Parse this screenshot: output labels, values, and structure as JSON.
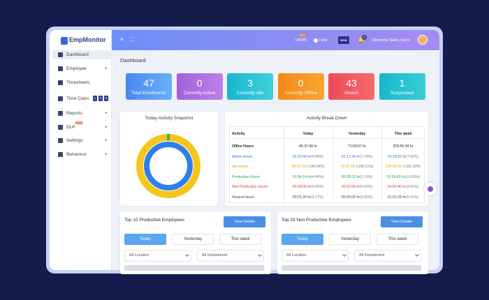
{
  "logo": "EmpMonitor",
  "sidebar": [
    {
      "label": "Dashboard"
    },
    {
      "label": "Employee"
    },
    {
      "label": "Timesheets"
    },
    {
      "label": "Time Claim",
      "badges": [
        "1",
        "2",
        "3"
      ]
    },
    {
      "label": "Reports"
    },
    {
      "label": "DLP",
      "badge": "NEW"
    },
    {
      "label": "Settings"
    },
    {
      "label": "Behaviour"
    }
  ],
  "topbar": {
    "hrms": "HRMS",
    "hrms_badge": "NEW",
    "help": "Help",
    "new_icon": "NEW",
    "notifications": "0",
    "welcome": "Welcome Sales_team"
  },
  "page_title": "Dashboard",
  "stats": [
    {
      "value": 47,
      "label": "Total Enrollments"
    },
    {
      "value": 0,
      "label": "Currently Active"
    },
    {
      "value": 3,
      "label": "Currently Idle"
    },
    {
      "value": 0,
      "label": "Currently Offline"
    },
    {
      "value": 43,
      "label": "Absent"
    },
    {
      "value": 1,
      "label": "Suspended"
    }
  ],
  "snapshot": {
    "title": "Today Activity Snapshot"
  },
  "breakdown": {
    "title": "Activity Break Down",
    "columns": [
      "Activity",
      "Today",
      "Yesterday",
      "This week"
    ],
    "rows": [
      {
        "activity": "Office Hours",
        "cells": [
          {
            "time": "45:37:40 hr"
          },
          {
            "time": "71:59:57 hr"
          },
          {
            "time": "259:55:34 hr"
          }
        ]
      },
      {
        "activity": "Active Hours",
        "cells": [
          {
            "time": "02:15:40 hr",
            "pct": "(4.96%)"
          },
          {
            "time": "01:17:26 hr",
            "pct": "(1.79%)"
          },
          {
            "time": "20:19:52 hr",
            "pct": "(7.82%)"
          }
        ]
      },
      {
        "activity": "Idle Hours",
        "cells": [
          {
            "time": "43:22:00 hr",
            "pct": "(95.04%)"
          },
          {
            "time": "70:42:29 hr",
            "pct": "(98.21%)"
          },
          {
            "time": "239:35:42 hr",
            "pct": "(92.18%)"
          }
        ]
      },
      {
        "activity": "Productive Hours",
        "cells": [
          {
            "time": "01:04:14 hr",
            "pct": "(4.40%)"
          },
          {
            "time": "00:25:22 hr",
            "pct": "(1.76%)"
          },
          {
            "time": "15:15:43 hr",
            "pct": "(13.63%)"
          }
        ]
      },
      {
        "activity": "Non-Productive Hours",
        "cells": [
          {
            "time": "00:18:08 hr",
            "pct": "(0.69%)"
          },
          {
            "time": "00:52:06 hr",
            "pct": "(5.62%)"
          },
          {
            "time": "04:02:40 hr",
            "pct": "(3.61%)"
          }
        ]
      },
      {
        "activity": "Neutral Hours",
        "cells": [
          {
            "time": "00:01:26 hr",
            "pct": "(4.27%)"
          },
          {
            "time": "00:00:00 hr",
            "pct": "(0.00%)"
          },
          {
            "time": "01:01:29 hr",
            "pct": "(0.91%)"
          }
        ]
      }
    ]
  },
  "panels": [
    {
      "title": "Top 10 Productive Employees",
      "button": "View Details",
      "tabs": [
        "Today",
        "Yesterday",
        "This week"
      ],
      "filters": [
        "All Location",
        "All Department"
      ]
    },
    {
      "title": "Top 10 Non Productive Employees",
      "button": "View Details",
      "tabs": [
        "Today",
        "Yesterday",
        "This week"
      ],
      "filters": [
        "All Location",
        "All Department"
      ]
    }
  ]
}
